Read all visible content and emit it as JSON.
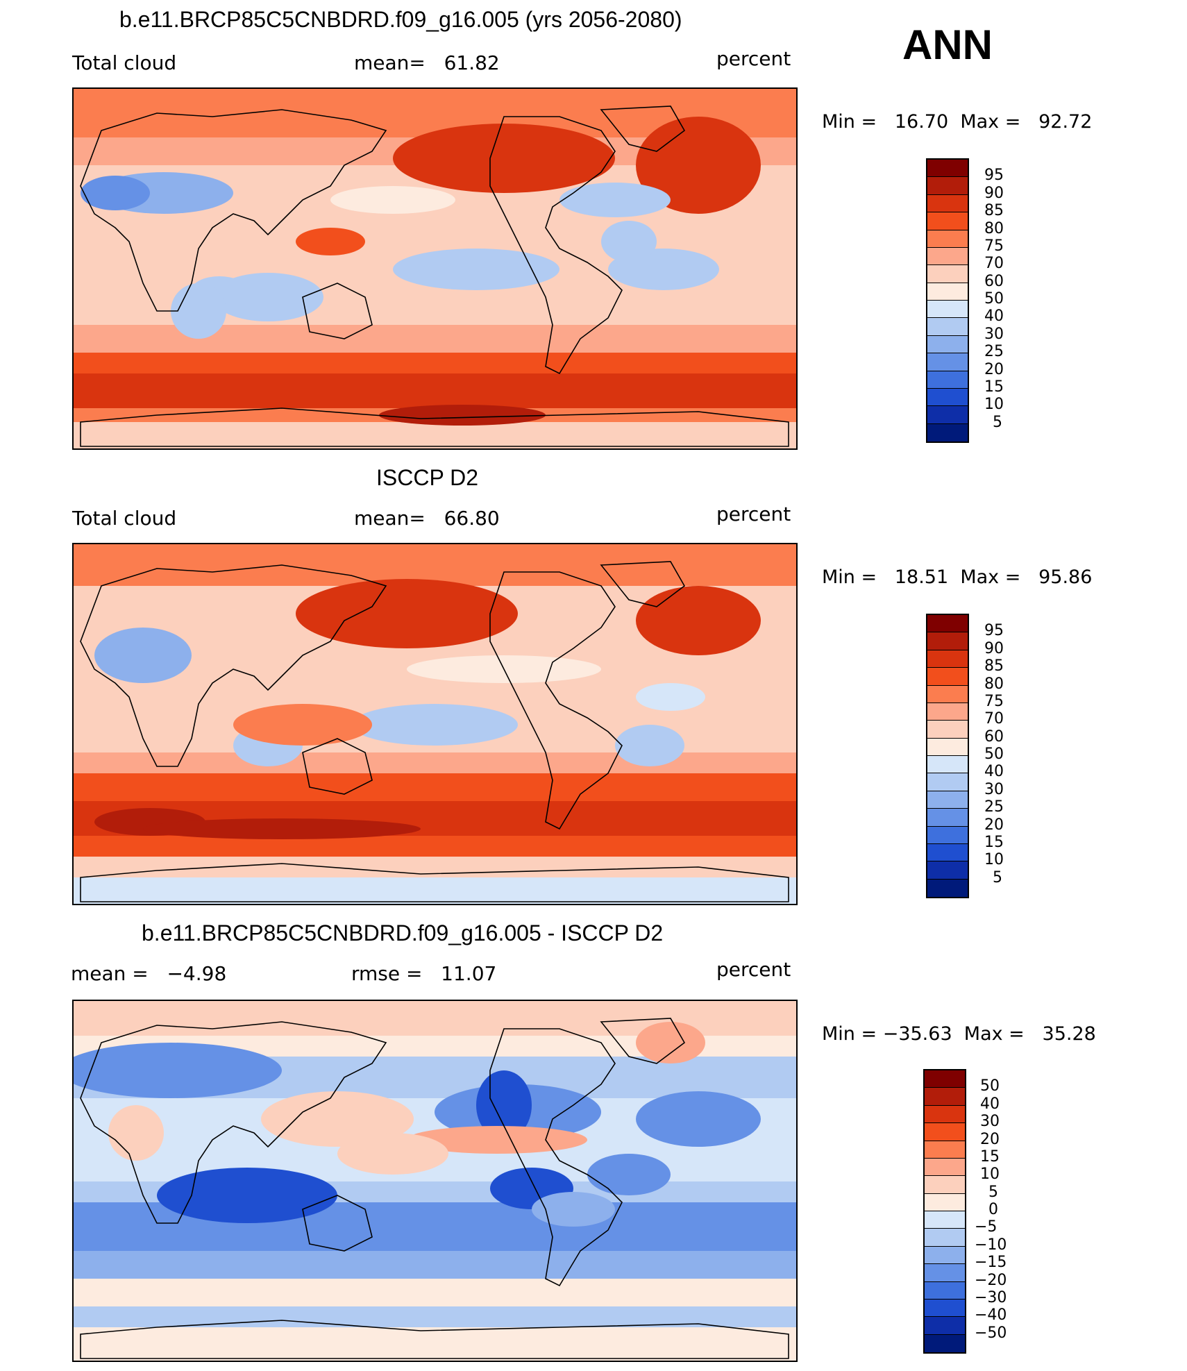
{
  "season": "ANN",
  "panels": [
    {
      "title": "b.e11.BRCP85C5CNBDRD.f09_g16.005 (yrs 2056-2080)",
      "left_label": "Total cloud",
      "center_label": "mean=   61.82",
      "units": "percent",
      "minmax": "Min =   16.70  Max =   92.72",
      "variant": "model"
    },
    {
      "title": "ISCCP D2",
      "left_label": "Total cloud",
      "center_label": "mean=   66.80",
      "units": "percent",
      "minmax": "Min =   18.51  Max =   95.86",
      "variant": "obs"
    },
    {
      "title": "b.e11.BRCP85C5CNBDRD.f09_g16.005 - ISCCP D2",
      "left_label": "mean =   −4.98",
      "center_label": "rmse =   11.07",
      "units": "percent",
      "minmax": "Min = −35.63  Max =   35.28",
      "variant": "diff"
    }
  ],
  "colorbars": {
    "abs_levels": [
      "95",
      "90",
      "85",
      "80",
      "75",
      "70",
      "60",
      "50",
      "40",
      "30",
      "25",
      "20",
      "15",
      "10",
      "5"
    ],
    "diff_levels": [
      "50",
      "40",
      "30",
      "20",
      "15",
      "10",
      "5",
      "0",
      "−5",
      "−10",
      "−15",
      "−20",
      "−30",
      "−40",
      "−50"
    ],
    "colors": [
      "#7f0000",
      "#b21d0a",
      "#d9340f",
      "#f24f1c",
      "#fb7d4f",
      "#fca78b",
      "#fcd0bd",
      "#fdebdf",
      "#d6e6f9",
      "#b1cbf2",
      "#8db0ec",
      "#6591e6",
      "#3e70dd",
      "#1f4fd0",
      "#0e2ea8",
      "#001a7a"
    ]
  }
}
